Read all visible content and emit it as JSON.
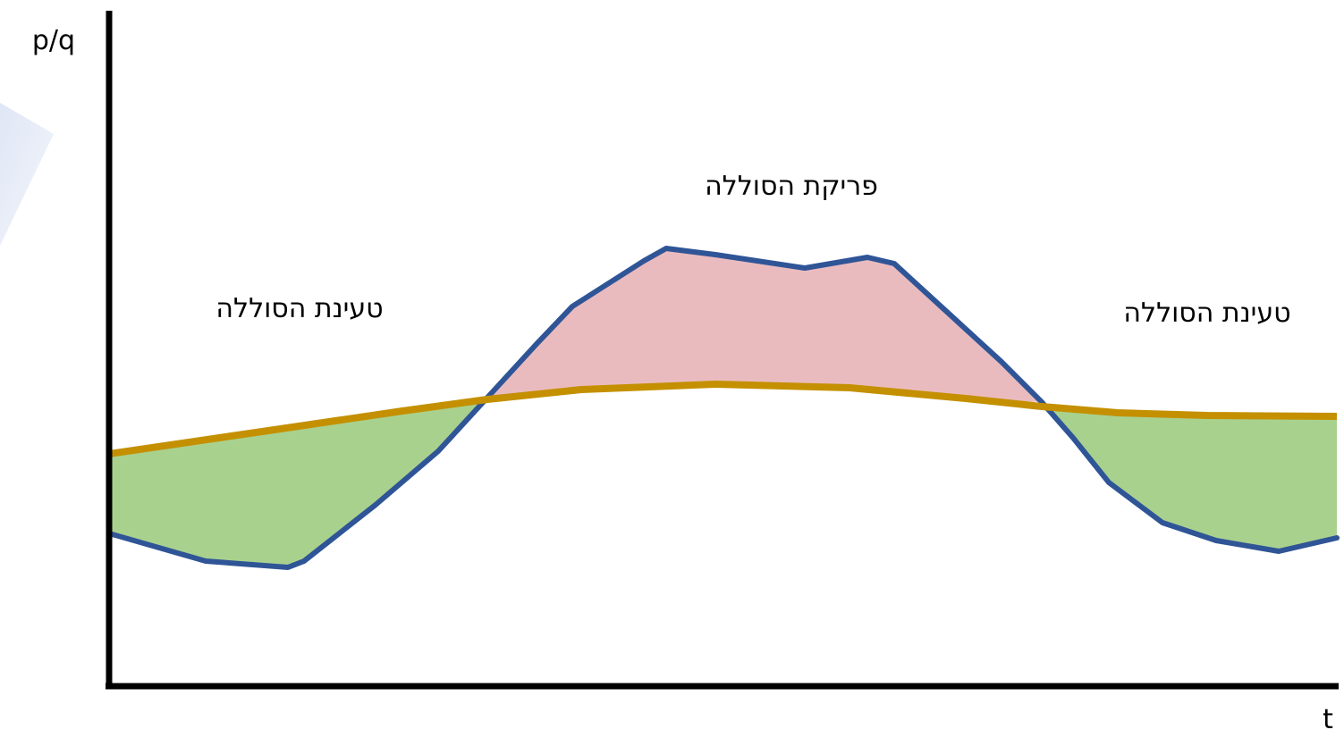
{
  "axes": {
    "y_label": "p/q",
    "x_label": "t"
  },
  "regions": [
    {
      "label": "טעינת הסוללה"
    },
    {
      "label": "פריקת הסוללה"
    },
    {
      "label": "טעינת הסוללה"
    }
  ]
}
